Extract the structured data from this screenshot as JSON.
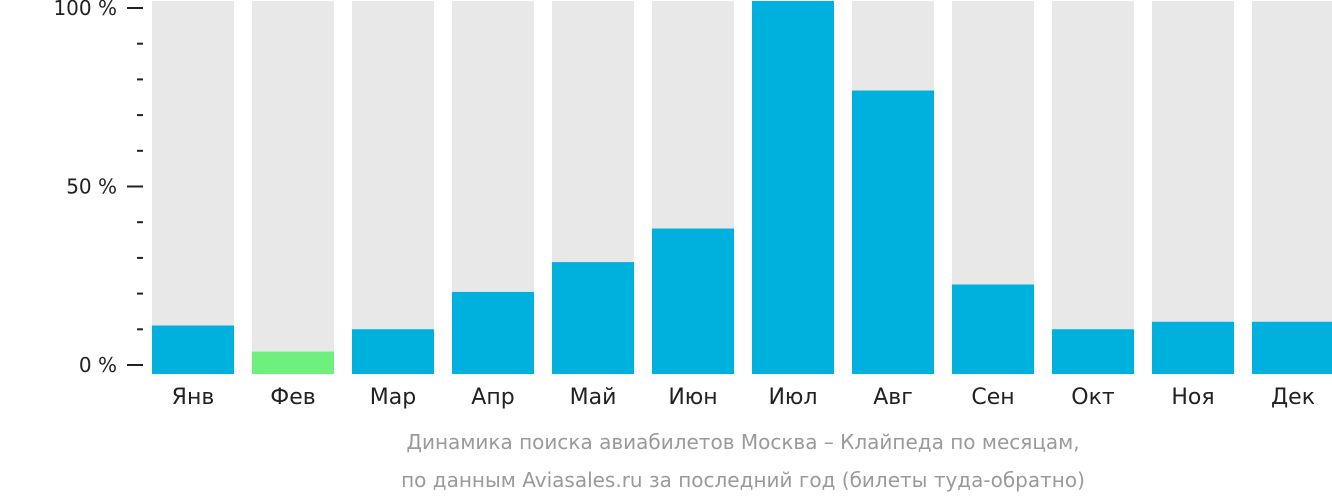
{
  "chart_data": {
    "type": "bar",
    "categories": [
      "Янв",
      "Фев",
      "Мар",
      "Апр",
      "Май",
      "Июн",
      "Июл",
      "Авг",
      "Сен",
      "Окт",
      "Ноя",
      "Дек"
    ],
    "values": [
      13,
      6,
      12,
      22,
      30,
      39,
      100,
      76,
      24,
      12,
      14,
      14
    ],
    "ylim": [
      0,
      100
    ],
    "yticks": [
      {
        "value": 0,
        "label": "0 %"
      },
      {
        "value": 50,
        "label": "50 %"
      },
      {
        "value": 100,
        "label": "100 %"
      }
    ],
    "minor_tick_step": 10,
    "highlight_index": 1,
    "grid": false,
    "legend": "none",
    "colors": {
      "bar": "#00b0dd",
      "highlight": "#6ef07e",
      "track": "#e8e8e8",
      "axis": "#222222"
    },
    "caption_line1": "Динамика поиска авиабилетов Москва – Клайпеда по месяцам,",
    "caption_line2": "по данным Aviasales.ru за последний год (билеты туда-обратно)"
  }
}
